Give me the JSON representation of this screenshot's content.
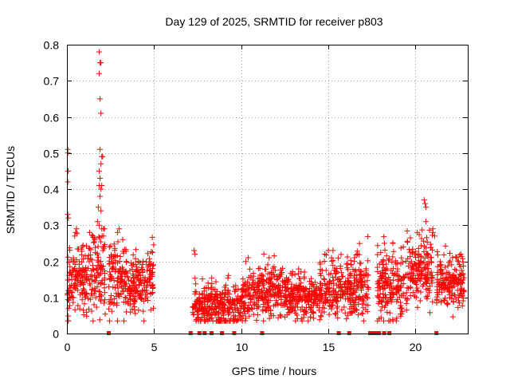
{
  "chart_data": {
    "type": "scatter",
    "title": "Day 129 of 2025, SRMTID for receiver p803",
    "xlabel": "GPS time / hours",
    "ylabel": "SRMTID / TECUs",
    "xlim": [
      0,
      23
    ],
    "ylim": [
      0,
      0.8
    ],
    "xticks": [
      0,
      5,
      10,
      15,
      20
    ],
    "yticks": [
      0,
      0.1,
      0.2,
      0.3,
      0.4,
      0.5,
      0.6,
      0.7,
      0.8
    ],
    "xtick_labels": [
      "0",
      "5",
      "10",
      "15",
      "20"
    ],
    "ytick_labels": [
      "0",
      "0.1",
      "0.2",
      "0.3",
      "0.4",
      "0.5",
      "0.6",
      "0.7",
      "0.8"
    ],
    "grid": true,
    "marker": "+",
    "color": "#ff0000",
    "segments": [
      {
        "x_start": 0.0,
        "x_end": 0.5,
        "median": 0.13,
        "spread": 0.05
      },
      {
        "x_start": 0.5,
        "x_end": 1.5,
        "median": 0.15,
        "spread": 0.05
      },
      {
        "x_start": 1.5,
        "x_end": 2.2,
        "median": 0.16,
        "spread": 0.06
      },
      {
        "x_start": 2.4,
        "x_end": 3.5,
        "median": 0.16,
        "spread": 0.05
      },
      {
        "x_start": 3.5,
        "x_end": 5.0,
        "median": 0.14,
        "spread": 0.04
      },
      {
        "x_start": 7.2,
        "x_end": 8.5,
        "median": 0.08,
        "spread": 0.03
      },
      {
        "x_start": 8.5,
        "x_end": 10.0,
        "median": 0.07,
        "spread": 0.03
      },
      {
        "x_start": 10.0,
        "x_end": 11.0,
        "median": 0.1,
        "spread": 0.035
      },
      {
        "x_start": 11.0,
        "x_end": 12.5,
        "median": 0.12,
        "spread": 0.035
      },
      {
        "x_start": 12.5,
        "x_end": 14.5,
        "median": 0.1,
        "spread": 0.03
      },
      {
        "x_start": 14.5,
        "x_end": 16.5,
        "median": 0.12,
        "spread": 0.04
      },
      {
        "x_start": 16.5,
        "x_end": 17.3,
        "median": 0.13,
        "spread": 0.04
      },
      {
        "x_start": 17.8,
        "x_end": 19.5,
        "median": 0.13,
        "spread": 0.045
      },
      {
        "x_start": 19.5,
        "x_end": 21.0,
        "median": 0.18,
        "spread": 0.05
      },
      {
        "x_start": 21.2,
        "x_end": 22.8,
        "median": 0.15,
        "spread": 0.04
      }
    ],
    "notable_points": [
      {
        "x": 0.05,
        "y": 0.51
      },
      {
        "x": 0.05,
        "y": 0.5
      },
      {
        "x": 0.07,
        "y": 0.45
      },
      {
        "x": 0.05,
        "y": 0.42
      },
      {
        "x": 0.05,
        "y": 0.33
      },
      {
        "x": 0.08,
        "y": 0.32
      },
      {
        "x": 0.5,
        "y": 0.28
      },
      {
        "x": 0.45,
        "y": 0.27
      },
      {
        "x": 1.85,
        "y": 0.78
      },
      {
        "x": 1.9,
        "y": 0.75
      },
      {
        "x": 1.95,
        "y": 0.75
      },
      {
        "x": 1.85,
        "y": 0.72
      },
      {
        "x": 1.9,
        "y": 0.65
      },
      {
        "x": 1.95,
        "y": 0.61
      },
      {
        "x": 1.9,
        "y": 0.51
      },
      {
        "x": 2.0,
        "y": 0.49
      },
      {
        "x": 2.05,
        "y": 0.49
      },
      {
        "x": 1.95,
        "y": 0.47
      },
      {
        "x": 1.85,
        "y": 0.45
      },
      {
        "x": 1.9,
        "y": 0.43
      },
      {
        "x": 1.85,
        "y": 0.41
      },
      {
        "x": 1.95,
        "y": 0.4
      },
      {
        "x": 2.0,
        "y": 0.41
      },
      {
        "x": 1.9,
        "y": 0.38
      },
      {
        "x": 1.8,
        "y": 0.35
      },
      {
        "x": 1.95,
        "y": 0.34
      },
      {
        "x": 1.75,
        "y": 0.31
      },
      {
        "x": 1.85,
        "y": 0.3
      },
      {
        "x": 2.0,
        "y": 0.29
      },
      {
        "x": 2.1,
        "y": 0.27
      },
      {
        "x": 1.3,
        "y": 0.28
      },
      {
        "x": 1.5,
        "y": 0.27
      },
      {
        "x": 3.0,
        "y": 0.29
      },
      {
        "x": 2.9,
        "y": 0.28
      },
      {
        "x": 3.2,
        "y": 0.26
      },
      {
        "x": 7.3,
        "y": 0.23
      },
      {
        "x": 7.35,
        "y": 0.22
      },
      {
        "x": 11.3,
        "y": 0.22
      },
      {
        "x": 11.6,
        "y": 0.21
      },
      {
        "x": 10.4,
        "y": 0.21
      },
      {
        "x": 15.0,
        "y": 0.23
      },
      {
        "x": 14.8,
        "y": 0.22
      },
      {
        "x": 16.5,
        "y": 0.21
      },
      {
        "x": 18.7,
        "y": 0.25
      },
      {
        "x": 19.3,
        "y": 0.24
      },
      {
        "x": 20.5,
        "y": 0.37
      },
      {
        "x": 20.55,
        "y": 0.36
      },
      {
        "x": 20.6,
        "y": 0.35
      },
      {
        "x": 20.6,
        "y": 0.31
      },
      {
        "x": 20.1,
        "y": 0.28
      },
      {
        "x": 21.0,
        "y": 0.28
      },
      {
        "x": 21.1,
        "y": 0.27
      },
      {
        "x": 22.6,
        "y": 0.22
      }
    ],
    "zero_markers": [
      2.4,
      7.1,
      7.6,
      7.9,
      8.3,
      8.9,
      9.6,
      11.2,
      15.6,
      16.2,
      17.4,
      17.5,
      17.6,
      17.7,
      17.9,
      18.2,
      18.5,
      21.2
    ]
  }
}
